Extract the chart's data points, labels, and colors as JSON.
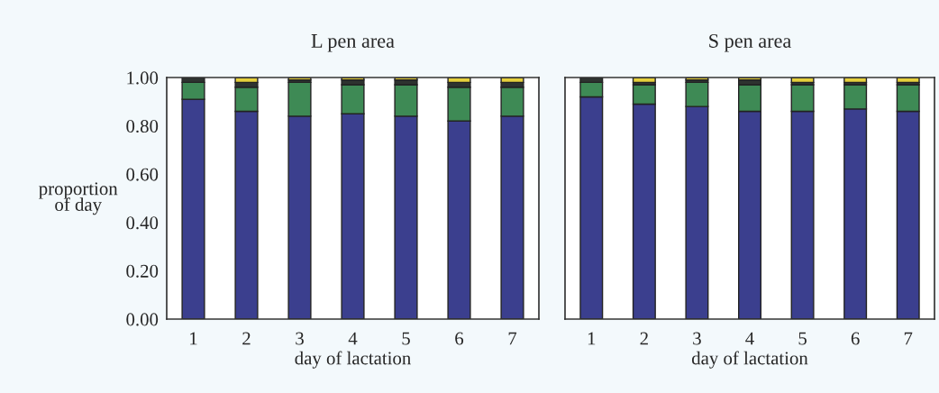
{
  "chart_data": [
    {
      "type": "bar",
      "title": "L pen area",
      "xlabel": "day of lactation",
      "ylabel": "proportion\nof day",
      "stacked": true,
      "categories": [
        "1",
        "2",
        "3",
        "4",
        "5",
        "6",
        "7"
      ],
      "ylim": [
        0,
        1
      ],
      "yticks": [
        {
          "value": 0,
          "label": "0.00"
        },
        {
          "value": 0.2,
          "label": "0.20"
        },
        {
          "value": 0.4,
          "label": "0.40"
        },
        {
          "value": 0.6,
          "label": "0.60"
        },
        {
          "value": 0.8,
          "label": "0.80"
        },
        {
          "value": 1,
          "label": "1.00"
        }
      ],
      "grid": false,
      "series": [
        {
          "color": "#3b3f8e",
          "values": [
            0.91,
            0.86,
            0.84,
            0.85,
            0.84,
            0.82,
            0.84
          ]
        },
        {
          "color": "#3e8a55",
          "values": [
            0.07,
            0.1,
            0.14,
            0.12,
            0.13,
            0.14,
            0.12
          ]
        },
        {
          "color": "#2e3330",
          "values": [
            0.02,
            0.02,
            0.01,
            0.02,
            0.02,
            0.02,
            0.02
          ]
        },
        {
          "color": "#e6d03c",
          "values": [
            null,
            0.02,
            0.01,
            0.01,
            0.01,
            0.02,
            0.02
          ]
        }
      ]
    },
    {
      "type": "bar",
      "title": "S pen area",
      "xlabel": "day of lactation",
      "stacked": true,
      "categories": [
        "1",
        "2",
        "3",
        "4",
        "5",
        "6",
        "7"
      ],
      "ylim": [
        0,
        1
      ],
      "yticks": [
        {
          "value": 0,
          "label": null
        },
        {
          "value": 0.2,
          "label": null
        },
        {
          "value": 0.4,
          "label": null
        },
        {
          "value": 0.6,
          "label": null
        },
        {
          "value": 0.8,
          "label": null
        },
        {
          "value": 1,
          "label": null
        }
      ],
      "tick_labels": "x",
      "grid": false,
      "series": [
        {
          "color": "#3b3f8e",
          "values": [
            0.92,
            0.89,
            0.88,
            0.86,
            0.86,
            0.87,
            0.86
          ]
        },
        {
          "color": "#3e8a55",
          "values": [
            0.06,
            0.08,
            0.1,
            0.11,
            0.11,
            0.1,
            0.11
          ]
        },
        {
          "color": "#2e3330",
          "values": [
            0.02,
            0.01,
            0.01,
            0.02,
            0.01,
            0.01,
            0.01
          ]
        },
        {
          "color": "#e6d03c",
          "values": [
            null,
            0.02,
            0.01,
            0.01,
            0.02,
            0.02,
            0.02
          ]
        }
      ]
    }
  ]
}
